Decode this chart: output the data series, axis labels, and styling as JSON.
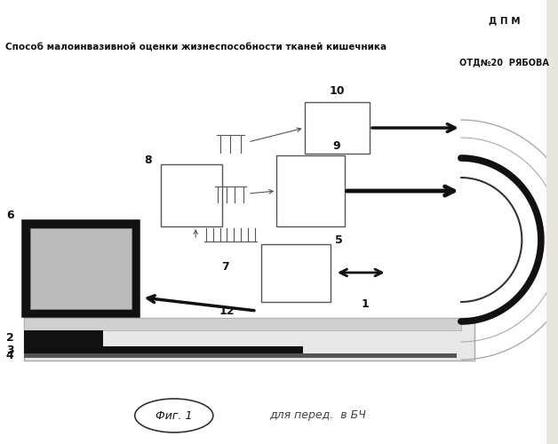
{
  "title": "Способ малоинвазивной оценки жизнеспособности тканей кишечника",
  "top_right_1": "Д П М",
  "top_right_2": "ОТД№20  РЯБОВА",
  "fig_label": "Фиг. 1",
  "handwritten": "для перед.  в БЧ",
  "bg_color": "#f5f3ef",
  "box_color": "#ffffff",
  "box_edge": "#555555",
  "arrow_color": "#111111"
}
